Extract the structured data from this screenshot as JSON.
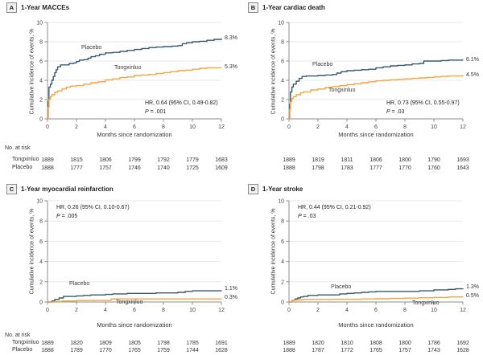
{
  "figure": {
    "y_axis_label": "Cumulative incidence of events, %",
    "x_axis_label": "Months since randomization",
    "risk_header": "No. at risk",
    "risk_row_labels": [
      "Tongxinluo",
      "Placebo"
    ],
    "p_label": "P",
    "colors": {
      "placebo": "#36586C",
      "tongxinluo": "#F7A43C",
      "grid": "#E3E3E3",
      "axis": "#8C8C8C",
      "tick_text": "#444444",
      "risk_text": "#333333"
    }
  },
  "chart_data": [
    {
      "type": "line",
      "letter": "A",
      "title": "1-Year MACCEs",
      "hr_text": "HR, 0.64 (95% CI, 0.49-0.82)",
      "p_text": " = .001",
      "xlabel": "Months since randomization",
      "ylabel": "Cumulative incidence of events, %",
      "xlim": [
        0,
        12
      ],
      "ylim": [
        0,
        10
      ],
      "x_ticks": [
        0,
        2,
        4,
        6,
        8,
        10,
        12
      ],
      "y_ticks": [
        0,
        2,
        4,
        6,
        8,
        10
      ],
      "series": [
        {
          "name": "Placebo",
          "key": "placebo",
          "end_label": "8.3%",
          "points": [
            [
              0,
              0
            ],
            [
              0.05,
              1.8
            ],
            [
              0.1,
              3.3
            ],
            [
              0.2,
              3.6
            ],
            [
              0.3,
              4.0
            ],
            [
              0.4,
              4.4
            ],
            [
              0.5,
              4.8
            ],
            [
              0.6,
              5.1
            ],
            [
              0.7,
              5.4
            ],
            [
              0.9,
              5.6
            ],
            [
              1.3,
              5.6
            ],
            [
              1.5,
              5.75
            ],
            [
              1.8,
              5.8
            ],
            [
              2.0,
              5.95
            ],
            [
              2.2,
              6.1
            ],
            [
              2.5,
              6.15
            ],
            [
              2.8,
              6.3
            ],
            [
              3.0,
              6.45
            ],
            [
              3.3,
              6.55
            ],
            [
              3.6,
              6.7
            ],
            [
              4.0,
              6.85
            ],
            [
              4.5,
              6.9
            ],
            [
              5.0,
              7.0
            ],
            [
              5.5,
              7.1
            ],
            [
              6.0,
              7.2
            ],
            [
              6.5,
              7.3
            ],
            [
              7.0,
              7.4
            ],
            [
              7.5,
              7.45
            ],
            [
              8.0,
              7.5
            ],
            [
              8.6,
              7.55
            ],
            [
              9.0,
              7.6
            ],
            [
              9.3,
              7.8
            ],
            [
              9.6,
              7.9
            ],
            [
              10.0,
              8.0
            ],
            [
              10.5,
              8.05
            ],
            [
              11.0,
              8.15
            ],
            [
              11.5,
              8.25
            ],
            [
              12,
              8.3
            ]
          ]
        },
        {
          "name": "Tongxinluo",
          "key": "tongxinluo",
          "end_label": "5.3%",
          "points": [
            [
              0,
              0
            ],
            [
              0.05,
              1.2
            ],
            [
              0.1,
              2.0
            ],
            [
              0.2,
              2.3
            ],
            [
              0.3,
              2.5
            ],
            [
              0.5,
              2.75
            ],
            [
              0.7,
              2.9
            ],
            [
              1.0,
              3.1
            ],
            [
              1.3,
              3.3
            ],
            [
              1.6,
              3.4
            ],
            [
              2.0,
              3.45
            ],
            [
              2.5,
              3.6
            ],
            [
              3.0,
              3.75
            ],
            [
              3.5,
              3.85
            ],
            [
              4.0,
              4.05
            ],
            [
              4.5,
              4.15
            ],
            [
              5.0,
              4.3
            ],
            [
              5.5,
              4.35
            ],
            [
              6.0,
              4.5
            ],
            [
              6.5,
              4.55
            ],
            [
              7.0,
              4.6
            ],
            [
              7.5,
              4.7
            ],
            [
              8.0,
              4.8
            ],
            [
              8.5,
              4.9
            ],
            [
              9.0,
              5.0
            ],
            [
              9.5,
              5.05
            ],
            [
              10.0,
              5.15
            ],
            [
              10.5,
              5.25
            ],
            [
              11.0,
              5.3
            ],
            [
              12,
              5.3
            ]
          ]
        }
      ],
      "risk_rows": [
        [
          "1889",
          "1815",
          "1806",
          "1799",
          "1792",
          "1779",
          "1683"
        ],
        [
          "1888",
          "1777",
          "1757",
          "1746",
          "1740",
          "1725",
          "1609"
        ]
      ]
    },
    {
      "type": "line",
      "letter": "B",
      "title": "1-Year cardiac death",
      "hr_text": "HR, 0.73 (95% CI, 0.55-0.97)",
      "p_text": " = .03",
      "xlabel": "Months since randomization",
      "ylabel": "Cumulative incidence of events, %",
      "xlim": [
        0,
        12
      ],
      "ylim": [
        0,
        10
      ],
      "x_ticks": [
        0,
        2,
        4,
        6,
        8,
        10,
        12
      ],
      "y_ticks": [
        0,
        2,
        4,
        6,
        8,
        10
      ],
      "series": [
        {
          "name": "Placebo",
          "key": "placebo",
          "end_label": "6.1%",
          "points": [
            [
              0,
              0
            ],
            [
              0.05,
              1.5
            ],
            [
              0.1,
              2.8
            ],
            [
              0.2,
              3.3
            ],
            [
              0.3,
              3.6
            ],
            [
              0.5,
              3.9
            ],
            [
              0.7,
              4.2
            ],
            [
              0.9,
              4.4
            ],
            [
              1.2,
              4.45
            ],
            [
              2.0,
              4.5
            ],
            [
              2.5,
              4.55
            ],
            [
              3.0,
              4.6
            ],
            [
              3.3,
              4.75
            ],
            [
              3.6,
              4.9
            ],
            [
              4.0,
              5.0
            ],
            [
              4.5,
              5.05
            ],
            [
              5.0,
              5.1
            ],
            [
              5.5,
              5.15
            ],
            [
              6.0,
              5.3
            ],
            [
              6.5,
              5.4
            ],
            [
              7.0,
              5.5
            ],
            [
              7.5,
              5.55
            ],
            [
              8.0,
              5.6
            ],
            [
              8.5,
              5.7
            ],
            [
              9.0,
              5.75
            ],
            [
              9.3,
              6.0
            ],
            [
              10.0,
              6.0
            ],
            [
              10.5,
              6.05
            ],
            [
              11.0,
              6.1
            ],
            [
              12,
              6.1
            ]
          ]
        },
        {
          "name": "Tongxinluo",
          "key": "tongxinluo",
          "end_label": "4.5%",
          "points": [
            [
              0,
              0
            ],
            [
              0.05,
              1.0
            ],
            [
              0.1,
              1.8
            ],
            [
              0.2,
              2.1
            ],
            [
              0.3,
              2.3
            ],
            [
              0.5,
              2.5
            ],
            [
              0.8,
              2.7
            ],
            [
              1.0,
              2.8
            ],
            [
              1.5,
              3.0
            ],
            [
              2.0,
              3.1
            ],
            [
              2.5,
              3.25
            ],
            [
              3.0,
              3.35
            ],
            [
              3.5,
              3.45
            ],
            [
              4.0,
              3.55
            ],
            [
              4.5,
              3.65
            ],
            [
              5.0,
              3.75
            ],
            [
              5.5,
              3.85
            ],
            [
              6.0,
              3.95
            ],
            [
              6.5,
              4.0
            ],
            [
              7.0,
              4.05
            ],
            [
              7.5,
              4.1
            ],
            [
              8.0,
              4.15
            ],
            [
              8.5,
              4.2
            ],
            [
              9.0,
              4.25
            ],
            [
              9.5,
              4.3
            ],
            [
              10.0,
              4.35
            ],
            [
              10.5,
              4.4
            ],
            [
              11.0,
              4.45
            ],
            [
              12,
              4.5
            ]
          ]
        }
      ],
      "risk_rows": [
        [
          "1889",
          "1819",
          "1811",
          "1806",
          "1800",
          "1790",
          "1693"
        ],
        [
          "1888",
          "1798",
          "1783",
          "1777",
          "1770",
          "1760",
          "1643"
        ]
      ]
    },
    {
      "type": "line",
      "letter": "C",
      "title": "1-Year myocardial reinfarction",
      "hr_text": "HR, 0.26 (95% CI, 0.10-0.67)",
      "p_text": " = .005",
      "xlabel": "Months since randomization",
      "ylabel": "Cumulative incidence of events, %",
      "xlim": [
        0,
        12
      ],
      "ylim": [
        0,
        10
      ],
      "x_ticks": [
        0,
        2,
        4,
        6,
        8,
        10,
        12
      ],
      "y_ticks": [
        0,
        2,
        4,
        6,
        8,
        10
      ],
      "series": [
        {
          "name": "Placebo",
          "key": "placebo",
          "end_label": "1.1%",
          "points": [
            [
              0,
              0
            ],
            [
              0.3,
              0.1
            ],
            [
              0.5,
              0.25
            ],
            [
              0.8,
              0.4
            ],
            [
              1.1,
              0.55
            ],
            [
              2.0,
              0.6
            ],
            [
              2.5,
              0.65
            ],
            [
              3.0,
              0.7
            ],
            [
              4.0,
              0.75
            ],
            [
              4.5,
              0.8
            ],
            [
              5.5,
              0.85
            ],
            [
              7.5,
              0.9
            ],
            [
              9.0,
              0.95
            ],
            [
              9.5,
              1.05
            ],
            [
              10.0,
              1.1
            ],
            [
              11.5,
              1.1
            ],
            [
              12,
              1.1
            ]
          ]
        },
        {
          "name": "Tongxinluo",
          "key": "tongxinluo",
          "end_label": "0.3%",
          "points": [
            [
              0,
              0
            ],
            [
              0.5,
              0.05
            ],
            [
              1.0,
              0.1
            ],
            [
              2.0,
              0.15
            ],
            [
              4.0,
              0.15
            ],
            [
              4.4,
              0.3
            ],
            [
              8.0,
              0.3
            ],
            [
              10,
              0.3
            ],
            [
              12,
              0.3
            ]
          ]
        }
      ],
      "risk_rows": [
        [
          "1889",
          "1820",
          "1809",
          "1805",
          "1798",
          "1785",
          "1691"
        ],
        [
          "1888",
          "1789",
          "1770",
          "1765",
          "1759",
          "1744",
          "1628"
        ]
      ]
    },
    {
      "type": "line",
      "letter": "D",
      "title": "1-Year stroke",
      "hr_text": "HR, 0.44 (95% CI, 0.21-0.92)",
      "p_text": " = .03",
      "xlabel": "Months since randomization",
      "ylabel": "Cumulative incidence of events, %",
      "xlim": [
        0,
        12
      ],
      "ylim": [
        0,
        10
      ],
      "x_ticks": [
        0,
        2,
        4,
        6,
        8,
        10,
        12
      ],
      "y_ticks": [
        0,
        2,
        4,
        6,
        8,
        10
      ],
      "series": [
        {
          "name": "Placebo",
          "key": "placebo",
          "end_label": "1.3%",
          "points": [
            [
              0,
              0
            ],
            [
              0.2,
              0.15
            ],
            [
              0.4,
              0.3
            ],
            [
              0.6,
              0.4
            ],
            [
              0.8,
              0.5
            ],
            [
              1.0,
              0.55
            ],
            [
              1.3,
              0.65
            ],
            [
              2.0,
              0.7
            ],
            [
              3.0,
              0.7
            ],
            [
              3.5,
              0.8
            ],
            [
              4.0,
              0.85
            ],
            [
              4.5,
              0.9
            ],
            [
              5.0,
              0.95
            ],
            [
              5.5,
              1.0
            ],
            [
              6.0,
              1.05
            ],
            [
              8.5,
              1.05
            ],
            [
              9.0,
              1.1
            ],
            [
              10.0,
              1.2
            ],
            [
              11.0,
              1.25
            ],
            [
              11.5,
              1.3
            ],
            [
              12,
              1.3
            ]
          ]
        },
        {
          "name": "Tongxinluo",
          "key": "tongxinluo",
          "end_label": "0.5%",
          "points": [
            [
              0,
              0
            ],
            [
              0.2,
              0.15
            ],
            [
              0.4,
              0.2
            ],
            [
              1.0,
              0.25
            ],
            [
              3.0,
              0.27
            ],
            [
              5.0,
              0.3
            ],
            [
              6.0,
              0.32
            ],
            [
              7.0,
              0.35
            ],
            [
              8.0,
              0.38
            ],
            [
              9.0,
              0.42
            ],
            [
              10.0,
              0.45
            ],
            [
              11.0,
              0.5
            ],
            [
              12,
              0.5
            ]
          ]
        }
      ],
      "risk_rows": [
        [
          "1889",
          "1820",
          "1810",
          "1808",
          "1800",
          "1786",
          "1692"
        ],
        [
          "1888",
          "1787",
          "1772",
          "1765",
          "1757",
          "1743",
          "1628"
        ]
      ]
    }
  ]
}
